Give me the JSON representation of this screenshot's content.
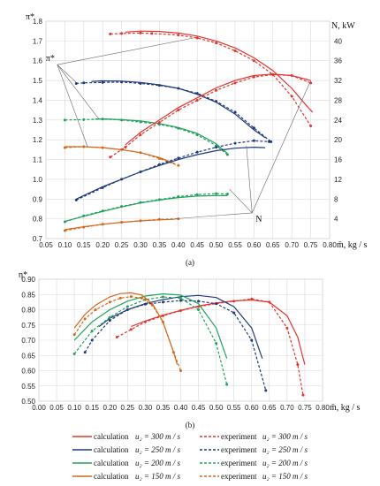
{
  "figure": {
    "panel_a_label": "(a)",
    "panel_b_label": "(b)"
  },
  "chart_data": [
    {
      "type": "line",
      "panel": "(a)",
      "xlabel": "m̄, kg / s",
      "ylabel": "π*",
      "y2label": "N, kW",
      "xlim": [
        0.05,
        0.8
      ],
      "ylim": [
        0.7,
        1.8
      ],
      "y2lim": [
        0,
        44
      ],
      "x_ticks": [
        "0.05",
        "0.10",
        "0.15",
        "0.20",
        "0.25",
        "0.30",
        "0.35",
        "0.40",
        "0.45",
        "0.50",
        "0.55",
        "0.60",
        "0.65",
        "0.70",
        "0.75",
        "0.80"
      ],
      "y_ticks": [
        "0.7",
        "0.8",
        "0.9",
        "1.0",
        "1.1",
        "1.2",
        "1.3",
        "1.4",
        "1.5",
        "1.6",
        "1.7",
        "1.8"
      ],
      "y2_ticks": [
        "4",
        "8",
        "12",
        "16",
        "20",
        "24",
        "28",
        "32",
        "36",
        "40"
      ],
      "grid": true,
      "annotations": [
        "π*",
        "N"
      ],
      "series": [
        {
          "name": "calculation u₂ = 300 m/s",
          "quantity": "π*",
          "axis": "left",
          "color": "#e3342f",
          "style": "solid",
          "x": [
            0.26,
            0.3,
            0.35,
            0.4,
            0.45,
            0.5,
            0.55,
            0.6,
            0.65,
            0.7,
            0.74,
            0.755
          ],
          "y": [
            1.745,
            1.75,
            1.748,
            1.74,
            1.725,
            1.7,
            1.665,
            1.615,
            1.55,
            1.46,
            1.37,
            1.34
          ]
        },
        {
          "name": "experiment u₂ = 300 m/s",
          "quantity": "π*",
          "axis": "left",
          "color": "#e3342f",
          "style": "dashed",
          "x": [
            0.22,
            0.25,
            0.3,
            0.33,
            0.4,
            0.45,
            0.5,
            0.55,
            0.6,
            0.65,
            0.7,
            0.75
          ],
          "y": [
            1.735,
            1.738,
            1.74,
            1.738,
            1.73,
            1.715,
            1.69,
            1.65,
            1.6,
            1.53,
            1.42,
            1.27
          ]
        },
        {
          "name": "calculation u₂ = 250 m/s",
          "quantity": "π*",
          "axis": "left",
          "color": "#1f3a7a",
          "style": "solid",
          "x": [
            0.17,
            0.2,
            0.25,
            0.3,
            0.35,
            0.4,
            0.45,
            0.5,
            0.55,
            0.6,
            0.63
          ],
          "y": [
            1.495,
            1.498,
            1.497,
            1.49,
            1.478,
            1.46,
            1.43,
            1.39,
            1.33,
            1.25,
            1.21
          ]
        },
        {
          "name": "experiment u₂ = 250 m/s",
          "quantity": "π*",
          "axis": "left",
          "color": "#1f3a7a",
          "style": "dashed",
          "x": [
            0.13,
            0.15,
            0.2,
            0.25,
            0.3,
            0.35,
            0.4,
            0.45,
            0.5,
            0.55,
            0.6,
            0.645
          ],
          "y": [
            1.485,
            1.488,
            1.49,
            1.492,
            1.485,
            1.475,
            1.46,
            1.435,
            1.395,
            1.34,
            1.26,
            1.19
          ]
        },
        {
          "name": "calculation u₂ = 200 m/s",
          "quantity": "π*",
          "axis": "left",
          "color": "#22a35a",
          "style": "solid",
          "x": [
            0.18,
            0.2,
            0.25,
            0.3,
            0.35,
            0.4,
            0.45,
            0.5,
            0.53
          ],
          "y": [
            1.305,
            1.306,
            1.302,
            1.295,
            1.282,
            1.262,
            1.232,
            1.18,
            1.13
          ]
        },
        {
          "name": "experiment u₂ = 200 m/s",
          "quantity": "π*",
          "axis": "left",
          "color": "#22a35a",
          "style": "dashed",
          "x": [
            0.1,
            0.15,
            0.2,
            0.25,
            0.3,
            0.35,
            0.4,
            0.45,
            0.5,
            0.53
          ],
          "y": [
            1.3,
            1.302,
            1.305,
            1.3,
            1.29,
            1.278,
            1.258,
            1.225,
            1.17,
            1.125
          ]
        },
        {
          "name": "calculation u₂ = 150 m/s",
          "quantity": "π*",
          "axis": "left",
          "color": "#d2691e",
          "style": "solid",
          "x": [
            0.1,
            0.15,
            0.2,
            0.25,
            0.3,
            0.35,
            0.39
          ],
          "y": [
            1.165,
            1.165,
            1.16,
            1.15,
            1.135,
            1.11,
            1.08
          ]
        },
        {
          "name": "experiment u₂ = 150 m/s",
          "quantity": "π*",
          "axis": "left",
          "color": "#d2691e",
          "style": "dashed",
          "x": [
            0.1,
            0.15,
            0.2,
            0.25,
            0.3,
            0.35,
            0.4
          ],
          "y": [
            1.16,
            1.165,
            1.16,
            1.15,
            1.135,
            1.105,
            1.07
          ]
        },
        {
          "name": "calculation u₂ = 300 m/s",
          "quantity": "N",
          "axis": "right",
          "color": "#e3342f",
          "style": "solid",
          "x": [
            0.26,
            0.3,
            0.35,
            0.4,
            0.45,
            0.5,
            0.55,
            0.6,
            0.65,
            0.7,
            0.75
          ],
          "y": [
            19.0,
            21.5,
            24.0,
            26.5,
            28.5,
            30.5,
            32.0,
            33.0,
            33.3,
            33.0,
            32.0
          ]
        },
        {
          "name": "experiment u₂ = 300 m/s",
          "quantity": "N",
          "axis": "right",
          "color": "#e3342f",
          "style": "dashed",
          "x": [
            0.22,
            0.26,
            0.3,
            0.35,
            0.4,
            0.45,
            0.5,
            0.55,
            0.6,
            0.65,
            0.7,
            0.75
          ],
          "y": [
            16.5,
            18.5,
            21.0,
            23.5,
            26.0,
            28.0,
            30.0,
            31.5,
            32.7,
            33.2,
            33.0,
            31.5
          ]
        },
        {
          "name": "calculation u₂ = 250 m/s",
          "quantity": "N",
          "axis": "right",
          "color": "#1f3a7a",
          "style": "solid",
          "x": [
            0.13,
            0.2,
            0.25,
            0.3,
            0.35,
            0.4,
            0.45,
            0.5,
            0.55,
            0.6,
            0.63
          ],
          "y": [
            8.0,
            10.5,
            12.0,
            13.5,
            14.8,
            16.0,
            17.0,
            17.8,
            18.3,
            18.5,
            18.4
          ]
        },
        {
          "name": "experiment u₂ = 250 m/s",
          "quantity": "N",
          "axis": "right",
          "color": "#1f3a7a",
          "style": "dashed",
          "x": [
            0.13,
            0.2,
            0.25,
            0.3,
            0.35,
            0.4,
            0.45,
            0.5,
            0.55,
            0.6,
            0.64
          ],
          "y": [
            7.8,
            10.3,
            12.0,
            13.5,
            15.0,
            16.3,
            17.5,
            18.5,
            19.3,
            19.8,
            19.6
          ]
        },
        {
          "name": "calculation u₂ = 200 m/s",
          "quantity": "N",
          "axis": "right",
          "color": "#22a35a",
          "style": "solid",
          "x": [
            0.1,
            0.15,
            0.2,
            0.25,
            0.3,
            0.35,
            0.4,
            0.45,
            0.5,
            0.53
          ],
          "y": [
            3.5,
            4.5,
            5.5,
            6.4,
            7.2,
            7.8,
            8.3,
            8.6,
            8.7,
            8.7
          ]
        },
        {
          "name": "experiment u₂ = 200 m/s",
          "quantity": "N",
          "axis": "right",
          "color": "#22a35a",
          "style": "dashed",
          "x": [
            0.1,
            0.15,
            0.2,
            0.25,
            0.3,
            0.35,
            0.4,
            0.45,
            0.5,
            0.53
          ],
          "y": [
            3.4,
            4.6,
            5.6,
            6.5,
            7.3,
            7.9,
            8.5,
            8.9,
            9.1,
            9.0
          ]
        },
        {
          "name": "calculation u₂ = 150 m/s",
          "quantity": "N",
          "axis": "right",
          "color": "#d2691e",
          "style": "solid",
          "x": [
            0.1,
            0.15,
            0.2,
            0.25,
            0.3,
            0.35,
            0.39
          ],
          "y": [
            1.8,
            2.4,
            2.9,
            3.3,
            3.6,
            3.8,
            3.9
          ]
        },
        {
          "name": "experiment u₂ = 150 m/s",
          "quantity": "N",
          "axis": "right",
          "color": "#d2691e",
          "style": "dashed",
          "x": [
            0.1,
            0.15,
            0.2,
            0.25,
            0.3,
            0.35,
            0.4
          ],
          "y": [
            1.6,
            2.3,
            2.9,
            3.3,
            3.6,
            3.9,
            4.0
          ]
        }
      ]
    },
    {
      "type": "line",
      "panel": "(b)",
      "xlabel": "m̄, kg / s",
      "ylabel": "η*",
      "xlim": [
        0.0,
        0.8
      ],
      "ylim": [
        0.5,
        0.9
      ],
      "x_ticks": [
        "0.00",
        "0.05",
        "0.10",
        "0.15",
        "0.20",
        "0.25",
        "0.30",
        "0.35",
        "0.40",
        "0.45",
        "0.50",
        "0.55",
        "0.60",
        "0.65",
        "0.70",
        "0.75",
        "0.80"
      ],
      "y_ticks": [
        "0.50",
        "0.55",
        "0.60",
        "0.65",
        "0.70",
        "0.75",
        "0.80",
        "0.85",
        "0.90"
      ],
      "grid": true,
      "series": [
        {
          "name": "calculation u₂ = 300 m/s",
          "color": "#e3342f",
          "style": "solid",
          "x": [
            0.26,
            0.3,
            0.35,
            0.4,
            0.45,
            0.5,
            0.55,
            0.6,
            0.65,
            0.7,
            0.73,
            0.75
          ],
          "y": [
            0.745,
            0.763,
            0.782,
            0.798,
            0.812,
            0.822,
            0.829,
            0.832,
            0.825,
            0.78,
            0.71,
            0.62
          ]
        },
        {
          "name": "experiment u₂ = 300 m/s",
          "color": "#e3342f",
          "style": "dashed",
          "x": [
            0.22,
            0.26,
            0.3,
            0.35,
            0.4,
            0.45,
            0.5,
            0.55,
            0.6,
            0.65,
            0.7,
            0.73,
            0.745
          ],
          "y": [
            0.71,
            0.735,
            0.76,
            0.78,
            0.797,
            0.81,
            0.82,
            0.828,
            0.835,
            0.825,
            0.74,
            0.62,
            0.52
          ]
        },
        {
          "name": "calculation u₂ = 250 m/s",
          "color": "#1f3a7a",
          "style": "solid",
          "x": [
            0.17,
            0.2,
            0.25,
            0.3,
            0.35,
            0.4,
            0.45,
            0.5,
            0.55,
            0.6,
            0.63
          ],
          "y": [
            0.745,
            0.772,
            0.8,
            0.82,
            0.833,
            0.843,
            0.847,
            0.84,
            0.81,
            0.74,
            0.64
          ]
        },
        {
          "name": "experiment u₂ = 250 m/s",
          "color": "#1f3a7a",
          "style": "dashed",
          "x": [
            0.13,
            0.15,
            0.2,
            0.25,
            0.3,
            0.35,
            0.4,
            0.45,
            0.5,
            0.55,
            0.6,
            0.64
          ],
          "y": [
            0.66,
            0.7,
            0.765,
            0.8,
            0.818,
            0.825,
            0.83,
            0.828,
            0.82,
            0.79,
            0.7,
            0.535
          ]
        },
        {
          "name": "calculation u₂ = 200 m/s",
          "color": "#22a35a",
          "style": "solid",
          "x": [
            0.1,
            0.15,
            0.2,
            0.25,
            0.3,
            0.35,
            0.4,
            0.45,
            0.5,
            0.53
          ],
          "y": [
            0.7,
            0.76,
            0.8,
            0.828,
            0.845,
            0.852,
            0.848,
            0.82,
            0.74,
            0.64
          ]
        },
        {
          "name": "experiment u₂ = 200 m/s",
          "color": "#22a35a",
          "style": "dashed",
          "x": [
            0.1,
            0.15,
            0.2,
            0.25,
            0.3,
            0.35,
            0.4,
            0.45,
            0.5,
            0.53
          ],
          "y": [
            0.655,
            0.73,
            0.775,
            0.81,
            0.833,
            0.842,
            0.838,
            0.8,
            0.69,
            0.555
          ]
        },
        {
          "name": "calculation u₂ = 150 m/s",
          "color": "#d2691e",
          "style": "solid",
          "x": [
            0.1,
            0.13,
            0.16,
            0.2,
            0.23,
            0.26,
            0.29,
            0.32,
            0.35,
            0.38,
            0.39
          ],
          "y": [
            0.74,
            0.785,
            0.815,
            0.842,
            0.853,
            0.855,
            0.848,
            0.82,
            0.76,
            0.66,
            0.62
          ]
        },
        {
          "name": "experiment u₂ = 150 m/s",
          "color": "#d2691e",
          "style": "dashed",
          "x": [
            0.1,
            0.13,
            0.16,
            0.2,
            0.23,
            0.26,
            0.29,
            0.32,
            0.35,
            0.38,
            0.4
          ],
          "y": [
            0.718,
            0.77,
            0.8,
            0.825,
            0.838,
            0.843,
            0.838,
            0.815,
            0.76,
            0.66,
            0.6
          ]
        }
      ]
    }
  ],
  "legend": {
    "rows": [
      {
        "color": "#e3342f",
        "calc_label": "calculation",
        "calc_u": "u₂ = 300 m / s",
        "exp_label": "experiment",
        "exp_u": "u₂ = 300 m / s"
      },
      {
        "color": "#1f3a7a",
        "calc_label": "calculation",
        "calc_u": "u₂ = 250 m / s",
        "exp_label": "experiment",
        "exp_u": "u₂ = 250 m / s"
      },
      {
        "color": "#22a35a",
        "calc_label": "calculation",
        "calc_u": "u₂ = 200 m / s",
        "exp_label": "experiment",
        "exp_u": "u₂ = 200 m / s"
      },
      {
        "color": "#d2691e",
        "calc_label": "calculation",
        "calc_u": "u₂ = 150 m / s",
        "exp_label": "experiment",
        "exp_u": "u₂ = 150 m / s"
      }
    ]
  }
}
